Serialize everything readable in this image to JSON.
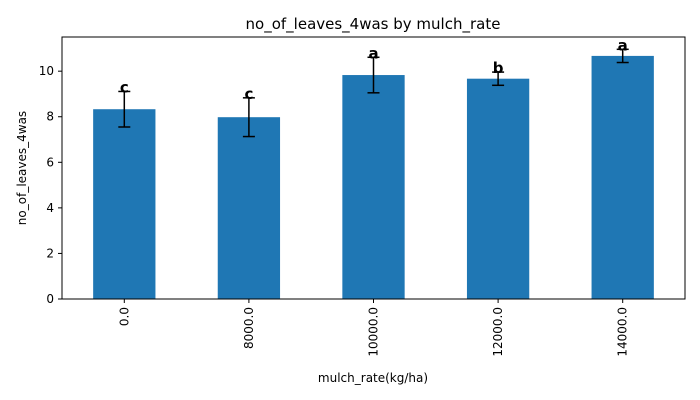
{
  "chart_data": {
    "type": "bar",
    "title": "no_of_leaves_4was by mulch_rate",
    "xlabel": "mulch_rate(kg/ha)",
    "ylabel": "no_of_leaves_4was",
    "categories": [
      "0.0",
      "8000.0",
      "10000.0",
      "12000.0",
      "14000.0"
    ],
    "values": [
      8.33,
      7.98,
      9.83,
      9.67,
      10.67
    ],
    "error": [
      0.78,
      0.85,
      0.78,
      0.29,
      0.29
    ],
    "significance_labels": [
      "c",
      "c",
      "a",
      "b",
      "a"
    ],
    "ylim": [
      0,
      11.5
    ],
    "yticks": [
      0,
      2,
      4,
      6,
      8,
      10
    ],
    "grid": false,
    "colors": {
      "bar": "#1f77b4",
      "error_bar": "#000000",
      "axis": "#000000"
    }
  }
}
